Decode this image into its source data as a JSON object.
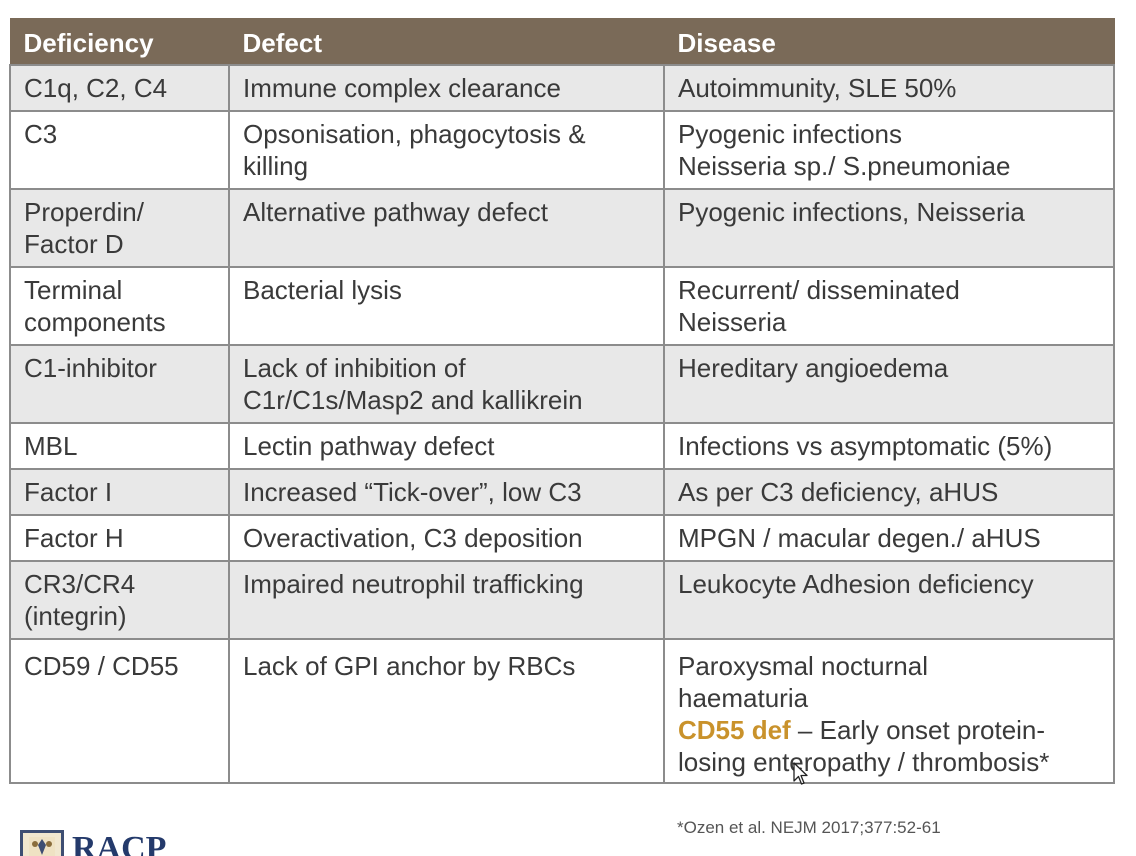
{
  "table": {
    "headers": [
      "Deficiency",
      "Defect",
      "Disease"
    ],
    "rows": [
      {
        "deficiency": [
          "C1q, C2, C4"
        ],
        "defect": [
          "Immune complex clearance"
        ],
        "disease": [
          "Autoimmunity, SLE 50%"
        ]
      },
      {
        "deficiency": [
          "C3"
        ],
        "defect": [
          "Opsonisation, phagocytosis &",
          "killing"
        ],
        "disease": [
          "Pyogenic infections",
          "Neisseria sp./ S.pneumoniae"
        ]
      },
      {
        "deficiency": [
          "Properdin/",
          "Factor D"
        ],
        "defect": [
          "Alternative pathway defect"
        ],
        "disease": [
          "Pyogenic infections, Neisseria"
        ]
      },
      {
        "deficiency": [
          "Terminal",
          "components"
        ],
        "defect": [
          "Bacterial lysis"
        ],
        "disease": [
          "Recurrent/ disseminated",
          "Neisseria"
        ]
      },
      {
        "deficiency": [
          "C1-inhibitor"
        ],
        "defect": [
          "Lack of inhibition of",
          "C1r/C1s/Masp2 and kallikrein"
        ],
        "disease": [
          "Hereditary angioedema"
        ]
      },
      {
        "deficiency": [
          "MBL"
        ],
        "defect": [
          "Lectin pathway defect"
        ],
        "disease": [
          "Infections vs asymptomatic (5%)"
        ]
      },
      {
        "deficiency": [
          "Factor I"
        ],
        "defect": [
          "Increased “Tick-over”, low C3"
        ],
        "disease": [
          "As per C3 deficiency, aHUS"
        ]
      },
      {
        "deficiency": [
          "Factor H"
        ],
        "defect": [
          "Overactivation, C3 deposition"
        ],
        "disease": [
          "MPGN / macular degen./ aHUS"
        ]
      },
      {
        "deficiency": [
          "CR3/CR4",
          "(integrin)"
        ],
        "defect": [
          "Impaired neutrophil trafficking"
        ],
        "disease": [
          "Leukocyte Adhesion deficiency"
        ]
      },
      {
        "deficiency": [
          "CD59 / CD55"
        ],
        "defect": [
          "Lack of GPI anchor by RBCs"
        ],
        "disease": [
          "Paroxysmal nocturnal",
          "haematuria"
        ],
        "disease_extra": {
          "highlight": "CD55 def",
          "rest_line1": " – Early onset protein-",
          "line2": "losing enteropathy / thrombosis*"
        }
      }
    ]
  },
  "footnote": "*Ozen et al. NEJM 2017;377:52-61",
  "logo": {
    "text": "RACP",
    "icon": "crest-icon"
  },
  "colors": {
    "header_bg": "#7a6a58",
    "shade_row": "#e8e8e8",
    "accent": "#c9922b",
    "logo_blue": "#243a6b"
  }
}
